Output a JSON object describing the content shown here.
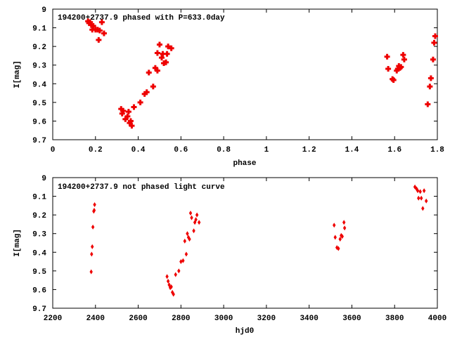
{
  "chart_data": [
    {
      "type": "scatter",
      "title": "194200+2737.9 phased with P=633.0day",
      "xlabel": "phase",
      "ylabel": "I[mag]",
      "xlim": [
        0,
        1.8
      ],
      "ylim": [
        9.7,
        9.0
      ],
      "y_inverted": true,
      "xticks": [
        "0",
        "0.2",
        "0.4",
        "0.6",
        "0.8",
        "1",
        "1.2",
        "1.4",
        "1.6",
        "1.8"
      ],
      "xtick_values": [
        0,
        0.2,
        0.4,
        0.6,
        0.8,
        1.0,
        1.2,
        1.4,
        1.6,
        1.8
      ],
      "yticks": [
        "9",
        "9.1",
        "9.2",
        "9.3",
        "9.4",
        "9.5",
        "9.6",
        "9.7"
      ],
      "ytick_values": [
        9.0,
        9.1,
        9.2,
        9.3,
        9.4,
        9.5,
        9.6,
        9.7
      ],
      "marker": "cross",
      "color": "#ee0000",
      "series": [
        {
          "x": [
            0.165,
            0.17,
            0.175,
            0.18,
            0.185,
            0.19,
            0.2,
            0.21,
            0.215,
            0.22,
            0.23,
            0.24,
            0.32,
            0.325,
            0.33,
            0.34,
            0.35,
            0.355,
            0.36,
            0.365,
            0.37,
            0.38,
            0.41,
            0.43,
            0.44,
            0.45,
            0.47,
            0.48,
            0.49,
            0.49,
            0.5,
            0.51,
            0.515,
            0.52,
            0.53,
            0.535,
            0.54,
            0.555,
            1.565,
            1.57,
            1.59,
            1.595,
            1.61,
            1.615,
            1.62,
            1.625,
            1.63,
            1.64,
            1.645,
            1.755,
            1.765,
            1.77,
            1.78,
            1.785,
            1.79
          ],
          "y": [
            9.065,
            9.075,
            9.07,
            9.085,
            9.11,
            9.09,
            9.11,
            9.11,
            9.165,
            9.115,
            9.07,
            9.13,
            9.535,
            9.56,
            9.545,
            9.59,
            9.575,
            9.55,
            9.61,
            9.6,
            9.625,
            9.525,
            9.5,
            9.455,
            9.445,
            9.34,
            9.415,
            9.315,
            9.33,
            9.235,
            9.19,
            9.26,
            9.24,
            9.29,
            9.285,
            9.24,
            9.2,
            9.21,
            9.255,
            9.32,
            9.375,
            9.38,
            9.33,
            9.32,
            9.305,
            9.315,
            9.31,
            9.245,
            9.27,
            9.51,
            9.415,
            9.37,
            9.27,
            9.18,
            9.145
          ]
        }
      ]
    },
    {
      "type": "scatter",
      "title": "194200+2737.9 not phased light curve",
      "xlabel": "hjd0",
      "ylabel": "I[mag]",
      "xlim": [
        2200,
        4000
      ],
      "ylim": [
        9.7,
        9.0
      ],
      "y_inverted": true,
      "xticks": [
        "2200",
        "2400",
        "2600",
        "2800",
        "3000",
        "3200",
        "3400",
        "3600",
        "3800",
        "4000"
      ],
      "xtick_values": [
        2200,
        2400,
        2600,
        2800,
        3000,
        3200,
        3400,
        3600,
        3800,
        4000
      ],
      "yticks": [
        "9",
        "9.1",
        "9.2",
        "9.3",
        "9.4",
        "9.5",
        "9.6",
        "9.7"
      ],
      "ytick_values": [
        9.0,
        9.1,
        9.2,
        9.3,
        9.4,
        9.5,
        9.6,
        9.7
      ],
      "marker": "diamond",
      "color": "#ee0000",
      "series": [
        {
          "x": [
            2380,
            2382,
            2385,
            2388,
            2392,
            2394,
            2396,
            2735,
            2740,
            2745,
            2750,
            2755,
            2760,
            2765,
            2775,
            2790,
            2800,
            2810,
            2818,
            2825,
            2830,
            2835,
            2840,
            2845,
            2850,
            2860,
            2865,
            2870,
            2875,
            2885,
            3517,
            3522,
            3530,
            3537,
            3545,
            3550,
            3555,
            3563,
            3566,
            3895,
            3903,
            3908,
            3912,
            3920,
            3925,
            3932,
            3938,
            3948
          ],
          "y": [
            9.505,
            9.41,
            9.37,
            9.265,
            9.18,
            9.175,
            9.145,
            9.53,
            9.555,
            9.575,
            9.59,
            9.585,
            9.615,
            9.625,
            9.52,
            9.5,
            9.45,
            9.445,
            9.34,
            9.41,
            9.3,
            9.32,
            9.33,
            9.19,
            9.215,
            9.285,
            9.24,
            9.225,
            9.2,
            9.24,
            9.255,
            9.32,
            9.375,
            9.38,
            9.33,
            9.31,
            9.315,
            9.24,
            9.27,
            9.05,
            9.06,
            9.07,
            9.11,
            9.075,
            9.11,
            9.165,
            9.07,
            9.125
          ]
        }
      ]
    }
  ]
}
